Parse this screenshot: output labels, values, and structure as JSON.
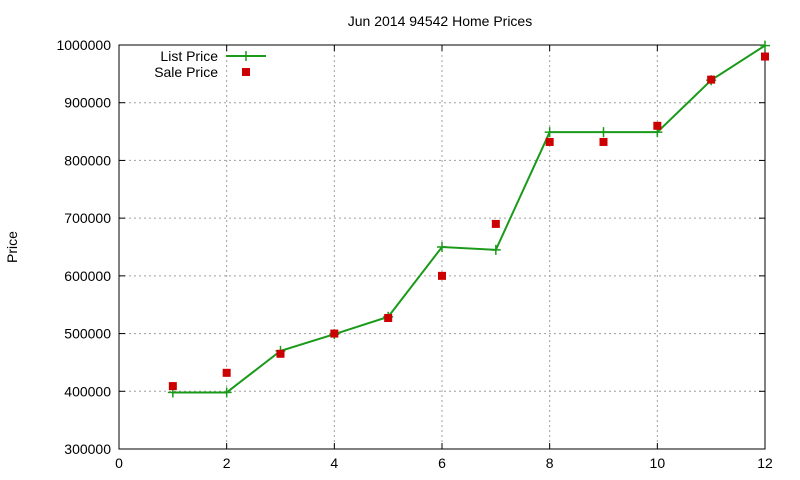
{
  "chart_data": {
    "type": "line",
    "title": "Jun 2014 94542 Home Prices",
    "xlabel": "",
    "ylabel": "Price",
    "xlim": [
      0,
      12
    ],
    "ylim": [
      300000,
      1000000
    ],
    "xticks": [
      0,
      2,
      4,
      6,
      8,
      10,
      12
    ],
    "yticks": [
      300000,
      400000,
      500000,
      600000,
      700000,
      800000,
      900000,
      1000000
    ],
    "grid": true,
    "legend": "top-left",
    "series": [
      {
        "name": "List Price",
        "style": "line-plus",
        "color": "#1a9a1a",
        "x": [
          1,
          2,
          3,
          4,
          5,
          6,
          7,
          8,
          9,
          10,
          11,
          12
        ],
        "y": [
          398000,
          398000,
          470000,
          499000,
          529000,
          650000,
          645000,
          849000,
          849000,
          849000,
          939000,
          999000
        ]
      },
      {
        "name": "Sale Price",
        "style": "square",
        "color": "#cc0000",
        "x": [
          1,
          2,
          3,
          4,
          5,
          6,
          7,
          8,
          9,
          10,
          11,
          12
        ],
        "y": [
          409000,
          432000,
          465000,
          500000,
          527000,
          600000,
          690000,
          832000,
          832000,
          860000,
          940000,
          980000
        ]
      }
    ]
  }
}
